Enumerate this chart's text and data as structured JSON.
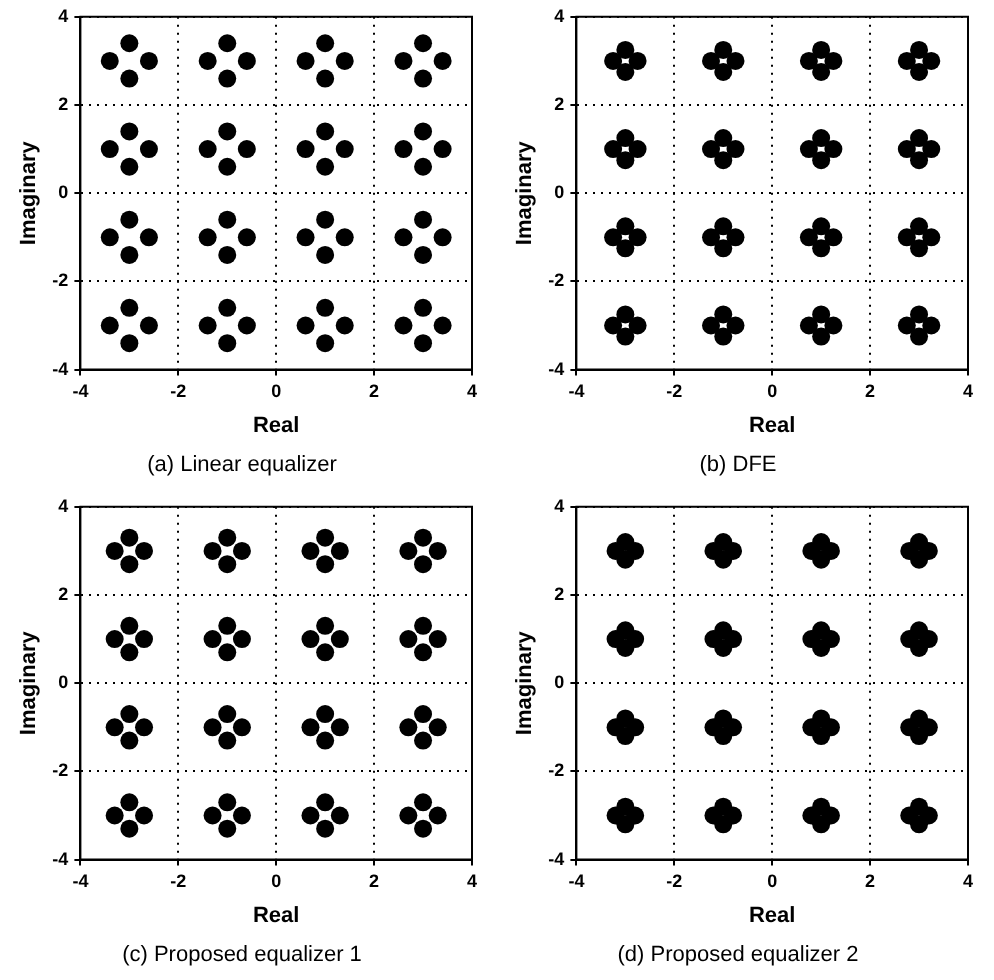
{
  "chart_data": [
    {
      "type": "scatter",
      "title": "(a) Linear equalizer",
      "xlabel": "Real",
      "ylabel": "Imaginary",
      "xlim": [
        -4,
        4
      ],
      "ylim": [
        -4,
        4
      ],
      "xticks": [
        -4,
        -2,
        0,
        2,
        4
      ],
      "yticks": [
        -4,
        -2,
        0,
        2,
        4
      ],
      "grid": true,
      "marker": "circle",
      "color": "#000000",
      "x": [
        -3.4,
        -2.6,
        -3,
        -3,
        -1.4,
        -0.6,
        -1,
        -1,
        0.6,
        1.4,
        1,
        1,
        2.6,
        3.4,
        3,
        3,
        -3.4,
        -2.6,
        -3,
        -3,
        -1.4,
        -0.6,
        -1,
        -1,
        0.6,
        1.4,
        1,
        1,
        2.6,
        3.4,
        3,
        3,
        -3.4,
        -2.6,
        -3,
        -3,
        -1.4,
        -0.6,
        -1,
        -1,
        0.6,
        1.4,
        1,
        1,
        2.6,
        3.4,
        3,
        3,
        -3.4,
        -2.6,
        -3,
        -3,
        -1.4,
        -0.6,
        -1,
        -1,
        0.6,
        1.4,
        1,
        1,
        2.6,
        3.4,
        3,
        3
      ],
      "values": [
        3,
        3,
        3.4,
        2.6,
        3,
        3,
        3.4,
        2.6,
        3,
        3,
        3.4,
        2.6,
        3,
        3,
        3.4,
        2.6,
        1,
        1,
        1.4,
        0.6,
        1,
        1,
        1.4,
        0.6,
        1,
        1,
        1.4,
        0.6,
        1,
        1,
        1.4,
        0.6,
        -1,
        -1,
        -0.6,
        -1.4,
        -1,
        -1,
        -0.6,
        -1.4,
        -1,
        -1,
        -0.6,
        -1.4,
        -1,
        -1,
        -0.6,
        -1.4,
        -3,
        -3,
        -2.6,
        -3.4,
        -3,
        -3,
        -2.6,
        -3.4,
        -3,
        -3,
        -2.6,
        -3.4,
        -3,
        -3,
        -2.6,
        -3.4
      ]
    },
    {
      "type": "scatter",
      "title": "(b) DFE",
      "xlabel": "Real",
      "ylabel": "Imaginary",
      "xlim": [
        -4,
        4
      ],
      "ylim": [
        -4,
        4
      ],
      "xticks": [
        -4,
        -2,
        0,
        2,
        4
      ],
      "yticks": [
        -4,
        -2,
        0,
        2,
        4
      ],
      "grid": true,
      "marker": "circle",
      "color": "#000000",
      "x": [
        -3.25,
        -2.75,
        -3,
        -3,
        -1.25,
        -0.75,
        -1,
        -1,
        0.75,
        1.25,
        1,
        1,
        2.75,
        3.25,
        3,
        3,
        -3.25,
        -2.75,
        -3,
        -3,
        -1.25,
        -0.75,
        -1,
        -1,
        0.75,
        1.25,
        1,
        1,
        2.75,
        3.25,
        3,
        3,
        -3.25,
        -2.75,
        -3,
        -3,
        -1.25,
        -0.75,
        -1,
        -1,
        0.75,
        1.25,
        1,
        1,
        2.75,
        3.25,
        3,
        3,
        -3.25,
        -2.75,
        -3,
        -3,
        -1.25,
        -0.75,
        -1,
        -1,
        0.75,
        1.25,
        1,
        1,
        2.75,
        3.25,
        3,
        3
      ],
      "values": [
        3,
        3,
        3.25,
        2.75,
        3,
        3,
        3.25,
        2.75,
        3,
        3,
        3.25,
        2.75,
        3,
        3,
        3.25,
        2.75,
        1,
        1,
        1.25,
        0.75,
        1,
        1,
        1.25,
        0.75,
        1,
        1,
        1.25,
        0.75,
        1,
        1,
        1.25,
        0.75,
        -1,
        -1,
        -0.75,
        -1.25,
        -1,
        -1,
        -0.75,
        -1.25,
        -1,
        -1,
        -0.75,
        -1.25,
        -1,
        -1,
        -0.75,
        -1.25,
        -3,
        -3,
        -2.75,
        -3.25,
        -3,
        -3,
        -2.75,
        -3.25,
        -3,
        -3,
        -2.75,
        -3.25,
        -3,
        -3,
        -2.75,
        -3.25
      ]
    },
    {
      "type": "scatter",
      "title": "(c) Proposed equalizer 1",
      "xlabel": "Real",
      "ylabel": "Imaginary",
      "xlim": [
        -4,
        4
      ],
      "ylim": [
        -4,
        4
      ],
      "xticks": [
        -4,
        -2,
        0,
        2,
        4
      ],
      "yticks": [
        -4,
        -2,
        0,
        2,
        4
      ],
      "grid": true,
      "marker": "circle",
      "color": "#000000",
      "x": [
        -3.3,
        -2.7,
        -3,
        -3,
        -1.3,
        -0.7,
        -1,
        -1,
        0.7,
        1.3,
        1,
        1,
        2.7,
        3.3,
        3,
        3,
        -3.3,
        -2.7,
        -3,
        -3,
        -1.3,
        -0.7,
        -1,
        -1,
        0.7,
        1.3,
        1,
        1,
        2.7,
        3.3,
        3,
        3,
        -3.3,
        -2.7,
        -3,
        -3,
        -1.3,
        -0.7,
        -1,
        -1,
        0.7,
        1.3,
        1,
        1,
        2.7,
        3.3,
        3,
        3,
        -3.3,
        -2.7,
        -3,
        -3,
        -1.3,
        -0.7,
        -1,
        -1,
        0.7,
        1.3,
        1,
        1,
        2.7,
        3.3,
        3,
        3
      ],
      "values": [
        3,
        3,
        3.3,
        2.7,
        3,
        3,
        3.3,
        2.7,
        3,
        3,
        3.3,
        2.7,
        3,
        3,
        3.3,
        2.7,
        1,
        1,
        1.3,
        0.7,
        1,
        1,
        1.3,
        0.7,
        1,
        1,
        1.3,
        0.7,
        1,
        1,
        1.3,
        0.7,
        -1,
        -1,
        -0.7,
        -1.3,
        -1,
        -1,
        -0.7,
        -1.3,
        -1,
        -1,
        -0.7,
        -1.3,
        -1,
        -1,
        -0.7,
        -1.3,
        -3,
        -3,
        -2.7,
        -3.3,
        -3,
        -3,
        -2.7,
        -3.3,
        -3,
        -3,
        -2.7,
        -3.3,
        -3,
        -3,
        -2.7,
        -3.3
      ]
    },
    {
      "type": "scatter",
      "title": "(d) Proposed equalizer 2",
      "xlabel": "Real",
      "ylabel": "Imaginary",
      "xlim": [
        -4,
        4
      ],
      "ylim": [
        -4,
        4
      ],
      "xticks": [
        -4,
        -2,
        0,
        2,
        4
      ],
      "yticks": [
        -4,
        -2,
        0,
        2,
        4
      ],
      "grid": true,
      "marker": "circle",
      "color": "#000000",
      "x": [
        -3.2,
        -2.8,
        -3,
        -3,
        -1.2,
        -0.8,
        -1,
        -1,
        0.8,
        1.2,
        1,
        1,
        2.8,
        3.2,
        3,
        3,
        -3.2,
        -2.8,
        -3,
        -3,
        -1.2,
        -0.8,
        -1,
        -1,
        0.8,
        1.2,
        1,
        1,
        2.8,
        3.2,
        3,
        3,
        -3.2,
        -2.8,
        -3,
        -3,
        -1.2,
        -0.8,
        -1,
        -1,
        0.8,
        1.2,
        1,
        1,
        2.8,
        3.2,
        3,
        3,
        -3.2,
        -2.8,
        -3,
        -3,
        -1.2,
        -0.8,
        -1,
        -1,
        0.8,
        1.2,
        1,
        1,
        2.8,
        3.2,
        3,
        3
      ],
      "values": [
        3,
        3,
        3.2,
        2.8,
        3,
        3,
        3.2,
        2.8,
        3,
        3,
        3.2,
        2.8,
        3,
        3,
        3.2,
        2.8,
        1,
        1,
        1.2,
        0.8,
        1,
        1,
        1.2,
        0.8,
        1,
        1,
        1.2,
        0.8,
        1,
        1,
        1.2,
        0.8,
        -1,
        -1,
        -0.8,
        -1.2,
        -1,
        -1,
        -0.8,
        -1.2,
        -1,
        -1,
        -0.8,
        -1.2,
        -1,
        -1,
        -0.8,
        -1.2,
        -3,
        -3,
        -2.8,
        -3.2,
        -3,
        -3,
        -2.8,
        -3.2,
        -3,
        -3,
        -2.8,
        -3.2,
        -3,
        -3,
        -2.8,
        -3.2
      ]
    }
  ]
}
